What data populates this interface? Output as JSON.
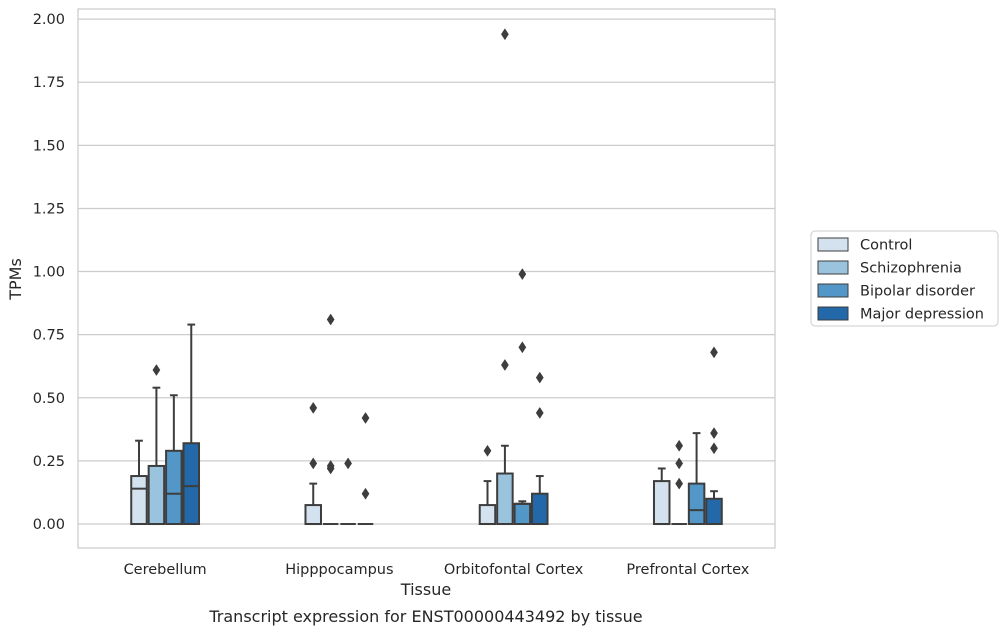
{
  "chart_data": {
    "type": "box",
    "caption": "Transcript expression for ENST00000443492 by tissue",
    "xlabel": "Tissue",
    "ylabel": "TPMs",
    "ylim": [
      -0.095,
      2.04
    ],
    "yticks": [
      "0.00",
      "0.25",
      "0.50",
      "0.75",
      "1.00",
      "1.25",
      "1.50",
      "1.75",
      "2.00"
    ],
    "ytick_values": [
      0,
      0.25,
      0.5,
      0.75,
      1.0,
      1.25,
      1.5,
      1.75,
      2.0
    ],
    "grid": "horizontal",
    "legend_placement": "right",
    "categories": [
      "Cerebellum",
      "Hipppocampus",
      "Orbitofontal Cortex",
      "Prefrontal Cortex"
    ],
    "series": [
      {
        "name": "Control",
        "color": "#d4e2f0",
        "boxes": [
          {
            "q1": 0,
            "median": 0.14,
            "q3": 0.19,
            "whisker_low": 0,
            "whisker_high": 0.33,
            "outliers": []
          },
          {
            "q1": 0,
            "median": 0,
            "q3": 0.075,
            "whisker_low": 0,
            "whisker_high": 0.16,
            "outliers": [
              0.24,
              0.46
            ]
          },
          {
            "q1": 0,
            "median": 0,
            "q3": 0.075,
            "whisker_low": 0,
            "whisker_high": 0.17,
            "outliers": [
              0.29
            ]
          },
          {
            "q1": 0,
            "median": 0,
            "q3": 0.17,
            "whisker_low": 0,
            "whisker_high": 0.22,
            "outliers": []
          }
        ]
      },
      {
        "name": "Schizophrenia",
        "color": "#9ac4de",
        "boxes": [
          {
            "q1": 0,
            "median": 0,
            "q3": 0.23,
            "whisker_low": 0,
            "whisker_high": 0.54,
            "outliers": [
              0.61
            ]
          },
          {
            "q1": 0,
            "median": 0,
            "q3": 0,
            "whisker_low": 0,
            "whisker_high": 0,
            "outliers": [
              0.22,
              0.23,
              0.81
            ]
          },
          {
            "q1": 0,
            "median": 0,
            "q3": 0.2,
            "whisker_low": 0,
            "whisker_high": 0.31,
            "outliers": [
              0.63,
              1.94
            ]
          },
          {
            "q1": 0,
            "median": 0,
            "q3": 0,
            "whisker_low": 0,
            "whisker_high": 0,
            "outliers": [
              0.16,
              0.24,
              0.31
            ]
          }
        ]
      },
      {
        "name": "Bipolar disorder",
        "color": "#5397c8",
        "boxes": [
          {
            "q1": 0,
            "median": 0.12,
            "q3": 0.29,
            "whisker_low": 0,
            "whisker_high": 0.51,
            "outliers": []
          },
          {
            "q1": 0,
            "median": 0,
            "q3": 0,
            "whisker_low": 0,
            "whisker_high": 0,
            "outliers": [
              0.24
            ]
          },
          {
            "q1": 0,
            "median": 0.08,
            "q3": 0.08,
            "whisker_low": 0,
            "whisker_high": 0.09,
            "outliers": [
              0.7,
              0.99
            ]
          },
          {
            "q1": 0,
            "median": 0.055,
            "q3": 0.16,
            "whisker_low": 0,
            "whisker_high": 0.36,
            "outliers": []
          }
        ]
      },
      {
        "name": "Major depression",
        "color": "#2369a9",
        "boxes": [
          {
            "q1": 0,
            "median": 0.15,
            "q3": 0.32,
            "whisker_low": 0,
            "whisker_high": 0.79,
            "outliers": []
          },
          {
            "q1": 0,
            "median": 0,
            "q3": 0,
            "whisker_low": 0,
            "whisker_high": 0,
            "outliers": [
              0.12,
              0.42
            ]
          },
          {
            "q1": 0,
            "median": 0,
            "q3": 0.12,
            "whisker_low": 0,
            "whisker_high": 0.19,
            "outliers": [
              0.44,
              0.58
            ]
          },
          {
            "q1": 0,
            "median": 0,
            "q3": 0.1,
            "whisker_low": 0,
            "whisker_high": 0.13,
            "outliers": [
              0.3,
              0.36,
              0.68
            ]
          }
        ]
      }
    ]
  }
}
